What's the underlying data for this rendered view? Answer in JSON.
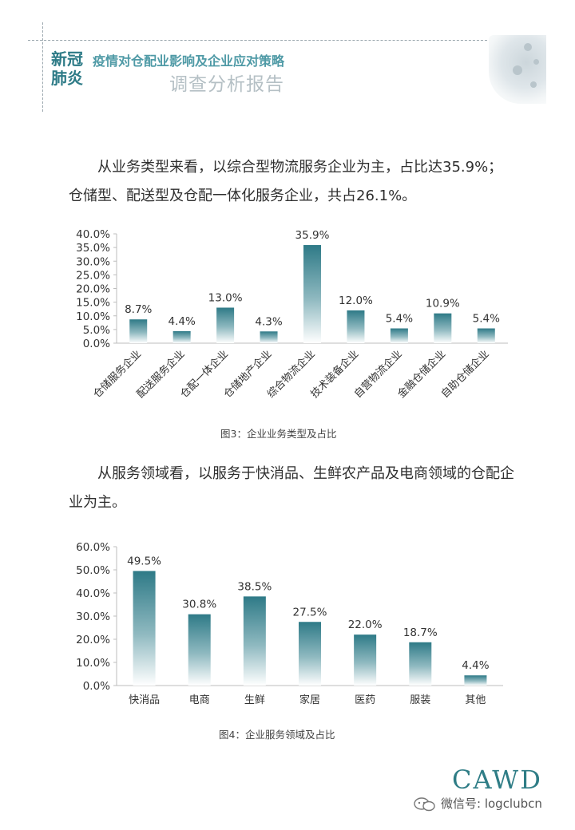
{
  "header": {
    "tag": "新冠肺炎",
    "subtitle": "疫情对仓配业影响及企业应对策略",
    "title": "调查分析报告"
  },
  "paragraph1": "从业务类型来看，以综合型物流服务企业为主，占比达35.9%；仓储型、配送型及仓配一体化服务企业，共占26.1%。",
  "paragraph2": "从服务领域看，以服务于快消品、生鲜农产品及电商领域的仓配企业为主。",
  "caption1": "图3：企业业务类型及占比",
  "caption2": "图4：企业服务领域及占比",
  "footer": {
    "logo": "CAWD",
    "wechat": "微信号: logclubcn"
  },
  "colors": {
    "bar_top": "#2e7a87",
    "bar_bottom": "#ffffff",
    "axis": "#bcbcbc",
    "accent": "#2c7a86"
  },
  "chart_data": [
    {
      "type": "bar",
      "categories": [
        "仓储服务企业",
        "配送服务企业",
        "仓配一体企业",
        "仓储地产企业",
        "综合物流企业",
        "技术装备企业",
        "自营物流企业",
        "金融仓储企业",
        "自助仓储企业"
      ],
      "values": [
        8.7,
        4.4,
        13.0,
        4.3,
        35.9,
        12.0,
        5.4,
        10.9,
        5.4
      ],
      "data_labels": [
        "8.7%",
        "4.4%",
        "13.0%",
        "4.3%",
        "35.9%",
        "12.0%",
        "5.4%",
        "10.9%",
        "5.4%"
      ],
      "yticks": [
        "0.0%",
        "5.0%",
        "10.0%",
        "15.0%",
        "20.0%",
        "25.0%",
        "30.0%",
        "35.0%",
        "40.0%"
      ],
      "ylim": [
        0,
        40
      ],
      "category_label_rotation": "-45deg",
      "title": "",
      "xlabel": "",
      "ylabel": "",
      "grid": false,
      "legend": "none"
    },
    {
      "type": "bar",
      "categories": [
        "快消品",
        "电商",
        "生鲜",
        "家居",
        "医药",
        "服装",
        "其他"
      ],
      "values": [
        49.5,
        30.8,
        38.5,
        27.5,
        22.0,
        18.7,
        4.4
      ],
      "data_labels": [
        "49.5%",
        "30.8%",
        "38.5%",
        "27.5%",
        "22.0%",
        "18.7%",
        "4.4%"
      ],
      "yticks": [
        "0.0%",
        "10.0%",
        "20.0%",
        "30.0%",
        "40.0%",
        "50.0%",
        "60.0%"
      ],
      "ylim": [
        0,
        60
      ],
      "title": "",
      "xlabel": "",
      "ylabel": "",
      "grid": false,
      "legend": "none"
    }
  ]
}
